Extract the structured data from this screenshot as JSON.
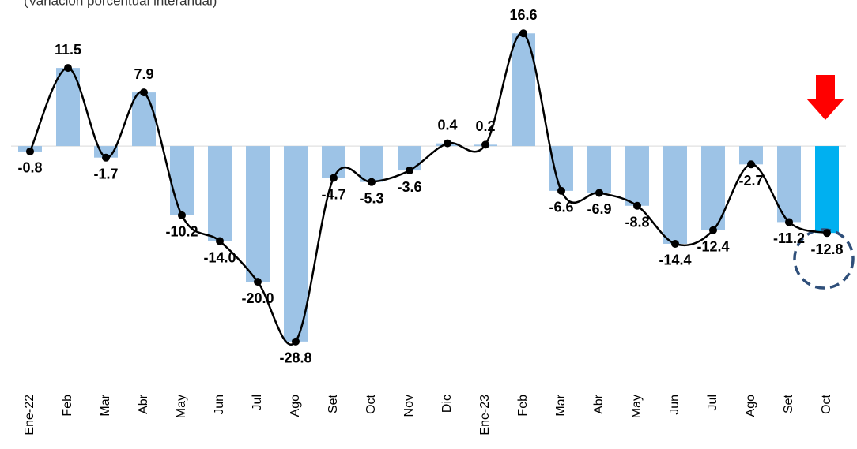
{
  "chart_data": {
    "type": "bar_line",
    "subtitle": "(Variación porcentual interanual)",
    "categories": [
      "Ene-22",
      "Feb",
      "Mar",
      "Abr",
      "May",
      "Jun",
      "Jul",
      "Ago",
      "Set",
      "Oct",
      "Nov",
      "Dic",
      "Ene-23",
      "Feb",
      "Mar",
      "Abr",
      "May",
      "Jun",
      "Jul",
      "Ago",
      "Set",
      "Oct"
    ],
    "values": [
      -0.8,
      11.5,
      -1.7,
      7.9,
      -10.2,
      -14.0,
      -20.0,
      -28.8,
      -4.7,
      -5.3,
      -3.6,
      0.4,
      0.2,
      16.6,
      -6.6,
      -6.9,
      -8.8,
      -14.4,
      -12.4,
      -2.7,
      -11.2,
      -12.8
    ],
    "value_labels": [
      "-0.8",
      "11.5",
      "-1.7",
      "7.9",
      "-10.2",
      "-14.0",
      "-20.0",
      "-28.8",
      "-4.7",
      "-5.3",
      "-3.6",
      "0.4",
      "0.2",
      "16.6",
      "-6.6",
      "-6.9",
      "-8.8",
      "-14.4",
      "-12.4",
      "-2.7",
      "-11.2",
      "-12.8"
    ],
    "colors": [
      "#9dc3e6",
      "#9dc3e6",
      "#9dc3e6",
      "#9dc3e6",
      "#9dc3e6",
      "#9dc3e6",
      "#9dc3e6",
      "#9dc3e6",
      "#9dc3e6",
      "#9dc3e6",
      "#9dc3e6",
      "#9dc3e6",
      "#9dc3e6",
      "#9dc3e6",
      "#9dc3e6",
      "#9dc3e6",
      "#9dc3e6",
      "#9dc3e6",
      "#9dc3e6",
      "#9dc3e6",
      "#9dc3e6",
      "#00b0f0"
    ],
    "line_color": "#000000",
    "ylim": [
      -33,
      20
    ]
  }
}
